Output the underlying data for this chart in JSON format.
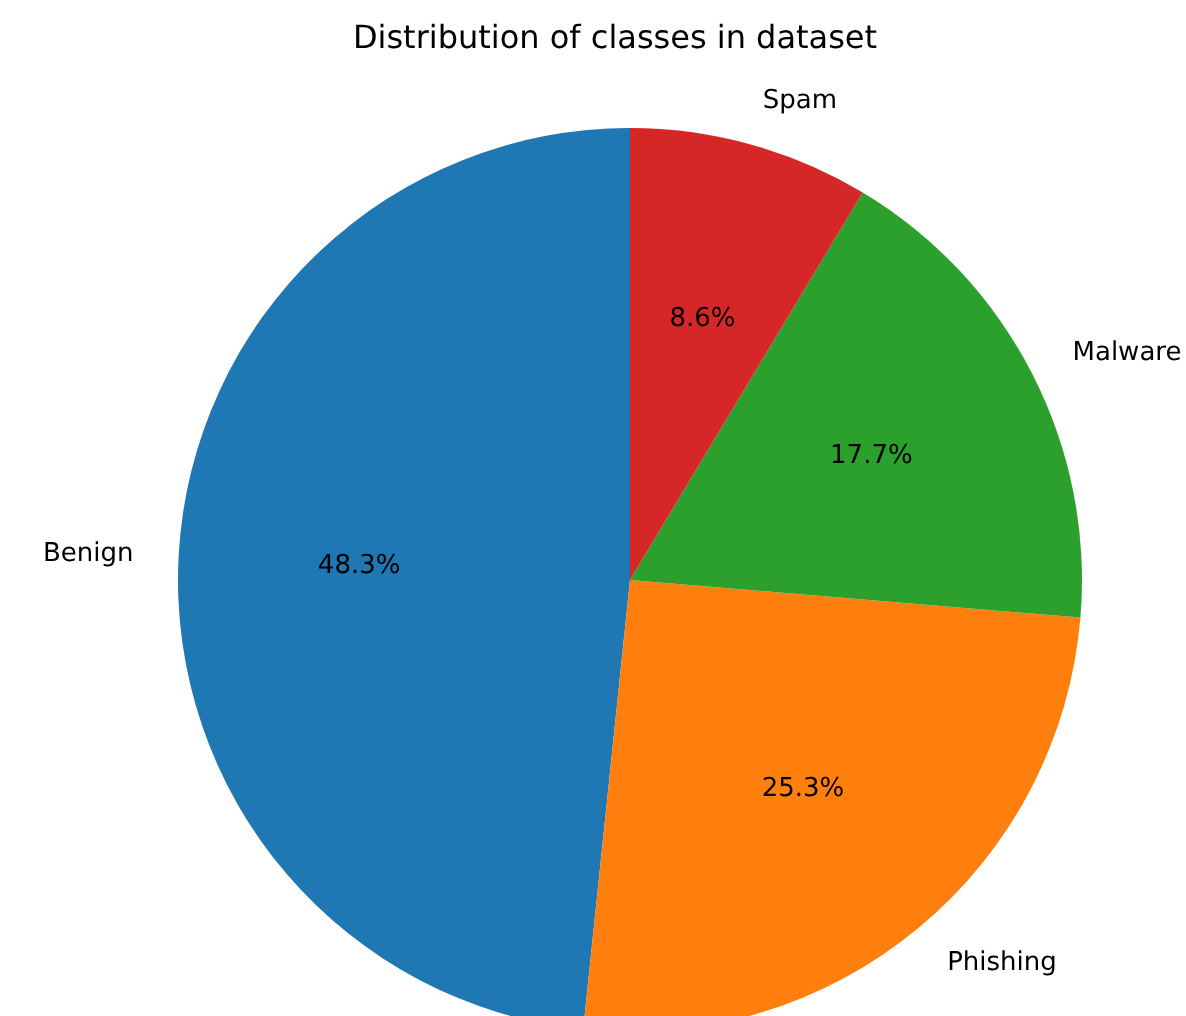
{
  "chart_data": {
    "type": "pie",
    "title": "Distribution of classes in dataset",
    "categories": [
      "Benign",
      "Phishing",
      "Malware",
      "Spam"
    ],
    "values": [
      48.3,
      25.3,
      17.7,
      8.6
    ],
    "value_labels": [
      "48.3%",
      "25.3%",
      "17.7%",
      "8.6%"
    ],
    "colors": [
      "#1f77b4",
      "#ff7f0e",
      "#2ca02c",
      "#d62728"
    ]
  }
}
